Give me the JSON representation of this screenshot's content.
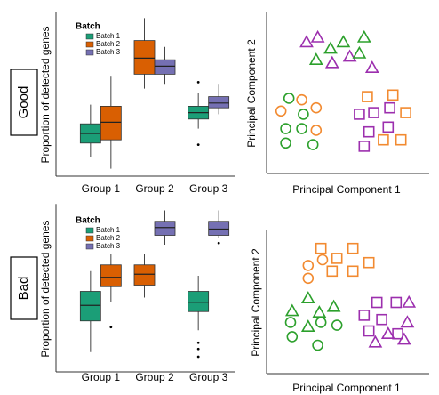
{
  "row_labels": [
    "Good",
    "Bad"
  ],
  "chart_data": [
    {
      "type": "box",
      "ylabel": "Proportion of detected genes",
      "categories": [
        "Group 1",
        "Group 2",
        "Group 3"
      ],
      "legend_title": "Batch",
      "ylim": [
        0,
        1
      ],
      "series": [
        {
          "name": "Batch 1",
          "color": "#1b9e77",
          "boxes": [
            {
              "min": 0.1,
              "q1": 0.19,
              "median": 0.25,
              "q3": 0.31,
              "max": 0.43
            },
            null,
            {
              "min": 0.28,
              "q1": 0.34,
              "median": 0.38,
              "q3": 0.42,
              "max": 0.5,
              "outliers": [
                0.57,
                0.18
              ]
            }
          ]
        },
        {
          "name": "Batch 2",
          "color": "#d95f02",
          "boxes": [
            {
              "min": 0.03,
              "q1": 0.21,
              "median": 0.32,
              "q3": 0.42,
              "max": 0.61
            },
            {
              "min": 0.53,
              "q1": 0.62,
              "median": 0.72,
              "q3": 0.83,
              "max": 0.97
            },
            null
          ]
        },
        {
          "name": "Batch 3",
          "color": "#7570b3",
          "boxes": [
            null,
            {
              "min": 0.56,
              "q1": 0.62,
              "median": 0.67,
              "q3": 0.71,
              "max": 0.79
            },
            {
              "min": 0.37,
              "q1": 0.41,
              "median": 0.44,
              "q3": 0.48,
              "max": 0.56
            }
          ]
        }
      ]
    },
    {
      "type": "scatter",
      "xlabel": "Principal Component 1",
      "ylabel": "Principal Component 2",
      "xlim": [
        0,
        10
      ],
      "ylim": [
        0,
        10
      ],
      "series": [
        {
          "color": "#9c2fae",
          "marker": "triangle",
          "x": [
            2.5,
            3.2,
            4.1,
            5.2,
            6.6
          ],
          "y": [
            8.2,
            8.5,
            6.9,
            7.3,
            6.6
          ]
        },
        {
          "color": "#2ca02c",
          "marker": "triangle",
          "x": [
            3.1,
            4.0,
            4.8,
            6.1,
            5.8
          ],
          "y": [
            7.1,
            7.8,
            8.2,
            8.5,
            7.5
          ]
        },
        {
          "color": "#2ca02c",
          "marker": "circle",
          "x": [
            1.4,
            2.3,
            1.2,
            2.2,
            1.2,
            2.9
          ],
          "y": [
            4.7,
            3.7,
            2.8,
            2.8,
            1.9,
            1.8
          ]
        },
        {
          "color": "#f28a30",
          "marker": "circle",
          "x": [
            0.9,
            2.2,
            3.1,
            3.1
          ],
          "y": [
            3.9,
            4.6,
            4.1,
            2.7
          ]
        },
        {
          "color": "#9c2fae",
          "marker": "square",
          "x": [
            5.8,
            6.7,
            7.7,
            7.6,
            6.4,
            6.1
          ],
          "y": [
            3.7,
            3.8,
            4.1,
            2.9,
            2.6,
            1.7
          ]
        },
        {
          "color": "#f28a30",
          "marker": "square",
          "x": [
            6.3,
            7.9,
            8.7,
            8.4,
            7.3
          ],
          "y": [
            4.8,
            4.9,
            3.8,
            2.1,
            2.1
          ]
        }
      ]
    },
    {
      "type": "box",
      "ylabel": "Proportion of detected genes",
      "categories": [
        "Group 1",
        "Group 2",
        "Group 3"
      ],
      "legend_title": "Batch",
      "ylim": [
        0,
        1.05
      ],
      "series": [
        {
          "name": "Batch 1",
          "color": "#1b9e77",
          "boxes": [
            {
              "min": 0.11,
              "q1": 0.31,
              "median": 0.41,
              "q3": 0.5,
              "max": 0.63
            },
            null,
            {
              "min": 0.25,
              "q1": 0.37,
              "median": 0.43,
              "q3": 0.5,
              "max": 0.6,
              "outliers": [
                0.17,
                0.13,
                0.08
              ]
            }
          ]
        },
        {
          "name": "Batch 2",
          "color": "#d95f02",
          "boxes": [
            {
              "min": 0.43,
              "q1": 0.53,
              "median": 0.59,
              "q3": 0.67,
              "max": 0.74,
              "outliers": [
                0.27
              ]
            },
            {
              "min": 0.46,
              "q1": 0.54,
              "median": 0.61,
              "q3": 0.67,
              "max": 0.74
            },
            null
          ]
        },
        {
          "name": "Batch 3",
          "color": "#7570b3",
          "boxes": [
            null,
            {
              "min": 0.8,
              "q1": 0.86,
              "median": 0.91,
              "q3": 0.95,
              "max": 1.02
            },
            {
              "min": 0.84,
              "q1": 0.86,
              "median": 0.9,
              "q3": 0.95,
              "max": 1.02,
              "outliers": [
                0.81
              ]
            }
          ]
        }
      ]
    },
    {
      "type": "scatter",
      "xlabel": "Principal Component 1",
      "ylabel": "Principal Component 2",
      "xlim": [
        0,
        10
      ],
      "ylim": [
        0,
        10
      ],
      "series": [
        {
          "color": "#f28a30",
          "marker": "square",
          "x": [
            3.4,
            5.4,
            4.4,
            6.4,
            4.1,
            5.4
          ],
          "y": [
            8.8,
            8.8,
            8.1,
            7.8,
            7.2,
            7.2
          ]
        },
        {
          "color": "#f28a30",
          "marker": "circle",
          "x": [
            2.6,
            2.6,
            3.5
          ],
          "y": [
            7.6,
            6.7,
            8.0
          ]
        },
        {
          "color": "#2ca02c",
          "marker": "triangle",
          "x": [
            2.6,
            4.2,
            1.6,
            3.3,
            2.6
          ],
          "y": [
            5.3,
            4.7,
            4.4,
            4.3,
            3.3
          ]
        },
        {
          "color": "#2ca02c",
          "marker": "circle",
          "x": [
            1.5,
            3.4,
            1.6,
            3.2,
            4.4
          ],
          "y": [
            3.6,
            3.6,
            2.6,
            2.0,
            3.4
          ]
        },
        {
          "color": "#9c2fae",
          "marker": "square",
          "x": [
            6.9,
            8.1,
            6.1,
            7.2,
            8.2,
            6.4
          ],
          "y": [
            5.0,
            5.0,
            4.1,
            3.8,
            2.8,
            3.0
          ]
        },
        {
          "color": "#9c2fae",
          "marker": "triangle",
          "x": [
            8.9,
            8.8,
            7.6,
            6.8,
            8.6
          ],
          "y": [
            5.0,
            3.6,
            2.8,
            2.2,
            2.4
          ]
        }
      ]
    }
  ]
}
